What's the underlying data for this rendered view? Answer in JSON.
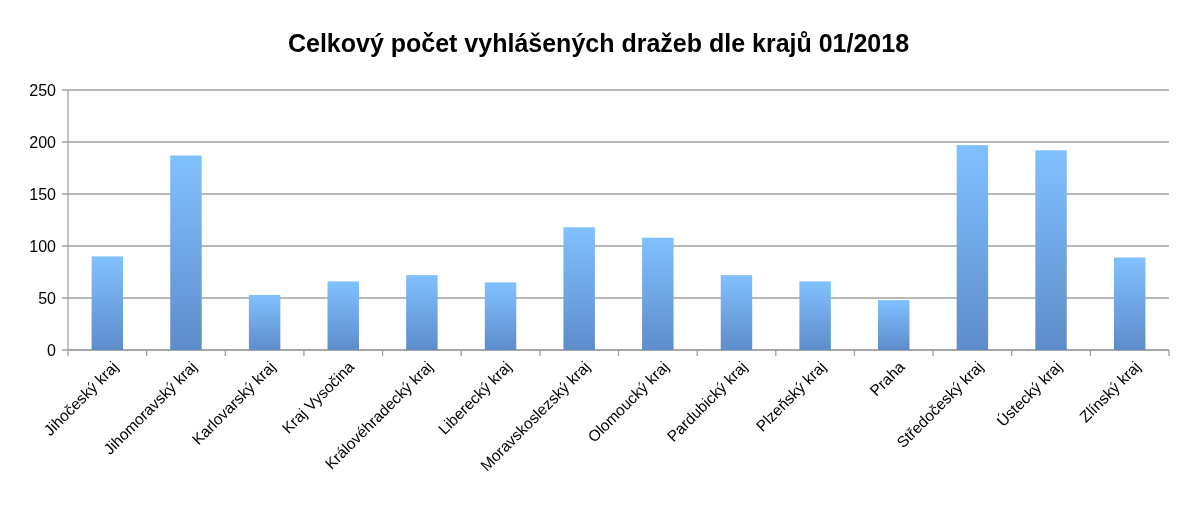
{
  "chart_data": {
    "type": "bar",
    "title": "Celkový počet vyhlášených dražeb dle krajů 01/2018",
    "categories": [
      "Jihočeský kraj",
      "Jihomoravský kraj",
      "Karlovarský kraj",
      "Kraj Vysočina",
      "Královéhradecký kraj",
      "Liberecký kraj",
      "Moravskoslezský kraj",
      "Olomoucký kraj",
      "Pardubický kraj",
      "Plzeňský kraj",
      "Praha",
      "Středočeský kraj",
      "Ústecký kraj",
      "Zlínský kraj"
    ],
    "values": [
      90,
      187,
      53,
      66,
      72,
      65,
      118,
      108,
      72,
      66,
      48,
      197,
      192,
      89
    ],
    "color": "#6a9fe6",
    "ylim": [
      0,
      250
    ],
    "yticks": [
      0,
      50,
      100,
      150,
      200,
      250
    ],
    "grid": "y"
  }
}
